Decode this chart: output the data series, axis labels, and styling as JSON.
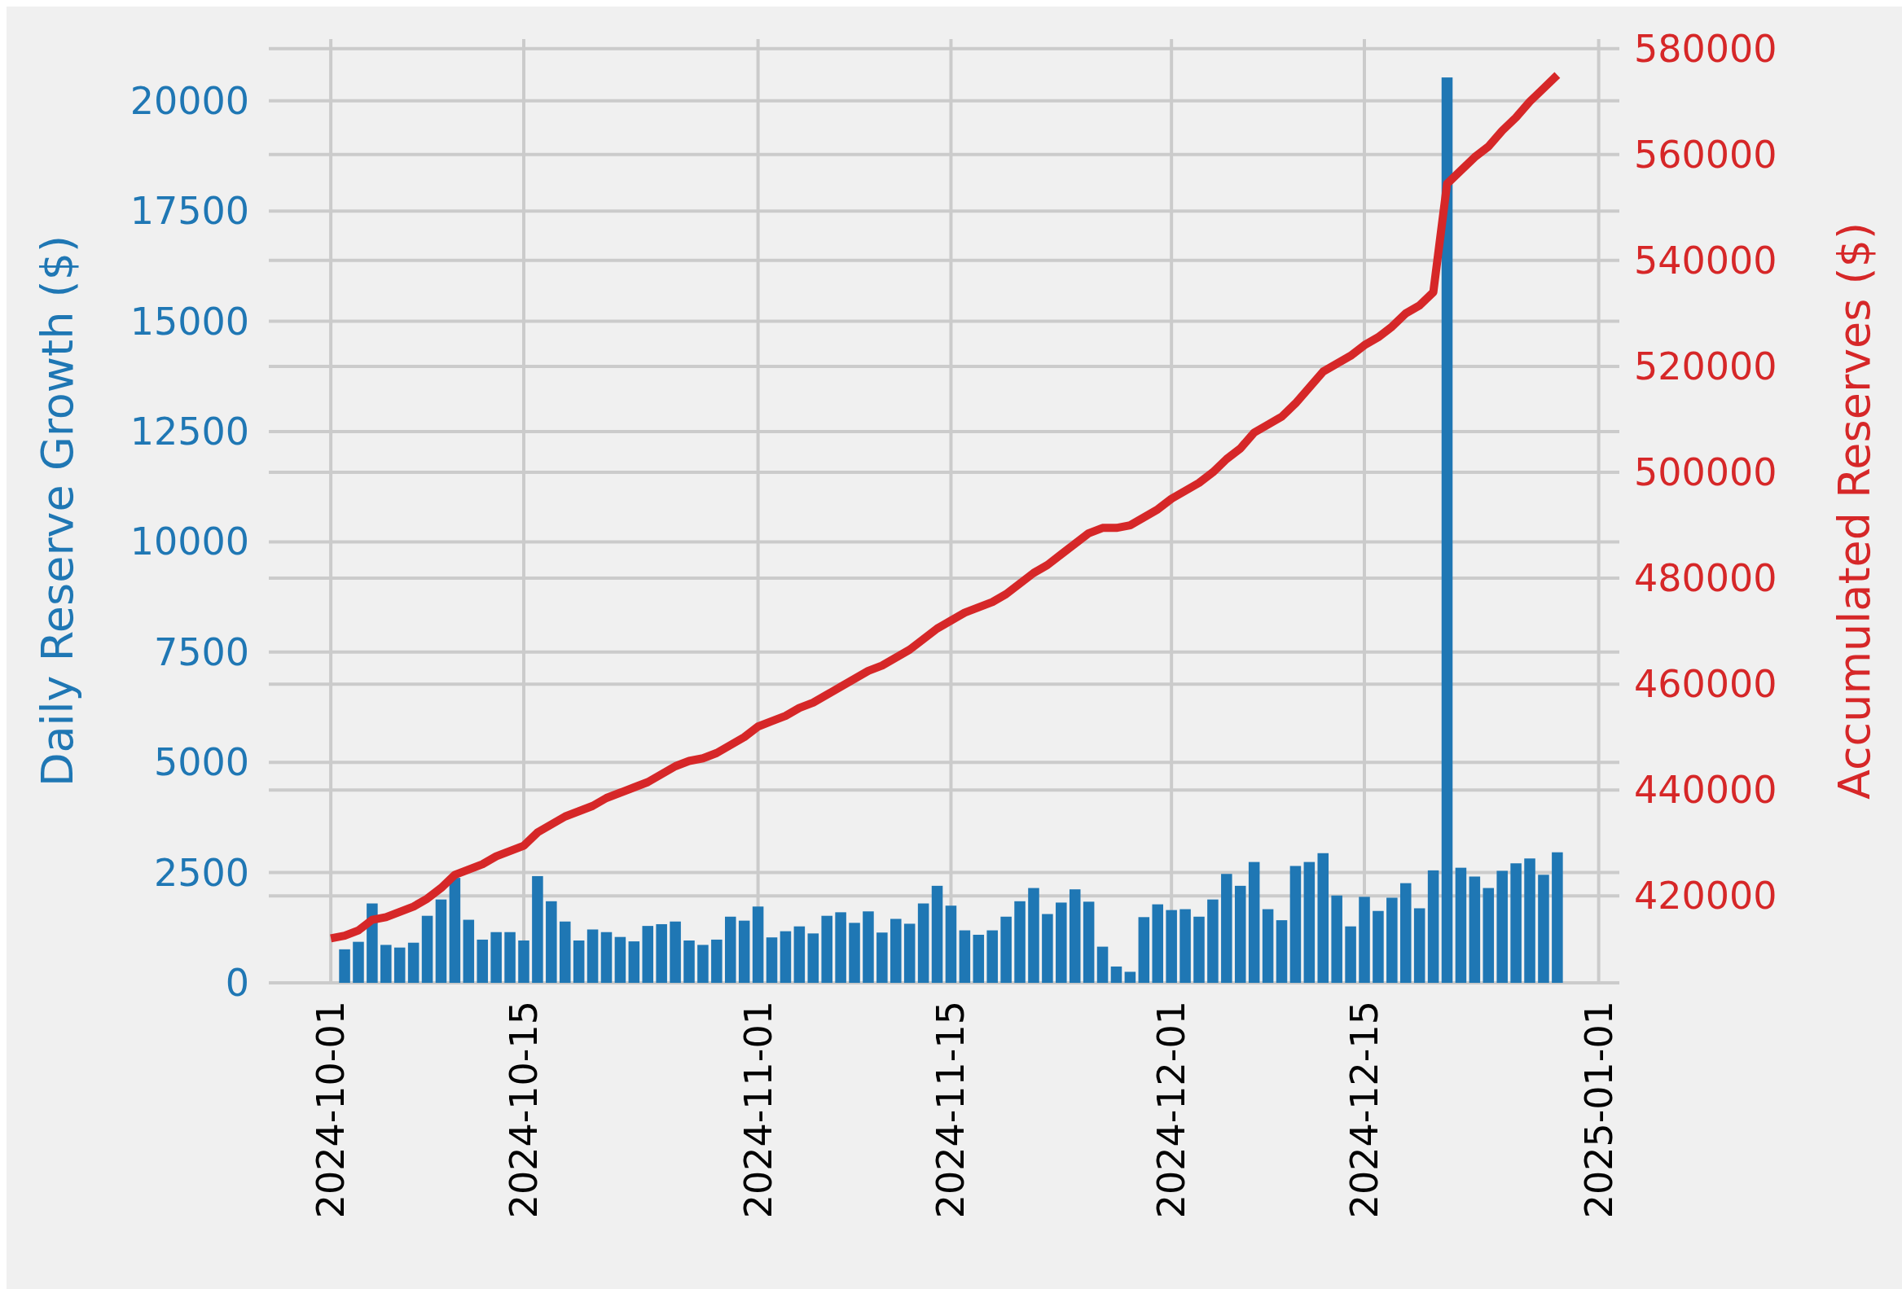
{
  "chart_data": {
    "type": "bar",
    "ylabel": "Daily Reserve Growth ($)",
    "y2label": "Accumulated Reserves ($)",
    "x": [
      "2024-10-01",
      "2024-10-02",
      "2024-10-03",
      "2024-10-04",
      "2024-10-05",
      "2024-10-06",
      "2024-10-07",
      "2024-10-08",
      "2024-10-09",
      "2024-10-10",
      "2024-10-11",
      "2024-10-12",
      "2024-10-13",
      "2024-10-14",
      "2024-10-15",
      "2024-10-16",
      "2024-10-17",
      "2024-10-18",
      "2024-10-19",
      "2024-10-20",
      "2024-10-21",
      "2024-10-22",
      "2024-10-23",
      "2024-10-24",
      "2024-10-25",
      "2024-10-26",
      "2024-10-27",
      "2024-10-28",
      "2024-10-29",
      "2024-10-30",
      "2024-10-31",
      "2024-11-01",
      "2024-11-02",
      "2024-11-03",
      "2024-11-04",
      "2024-11-05",
      "2024-11-06",
      "2024-11-07",
      "2024-11-08",
      "2024-11-09",
      "2024-11-10",
      "2024-11-11",
      "2024-11-12",
      "2024-11-13",
      "2024-11-14",
      "2024-11-15",
      "2024-11-16",
      "2024-11-17",
      "2024-11-18",
      "2024-11-19",
      "2024-11-20",
      "2024-11-21",
      "2024-11-22",
      "2024-11-23",
      "2024-11-24",
      "2024-11-25",
      "2024-11-26",
      "2024-11-27",
      "2024-11-28",
      "2024-11-29",
      "2024-11-30",
      "2024-12-01",
      "2024-12-02",
      "2024-12-03",
      "2024-12-04",
      "2024-12-05",
      "2024-12-06",
      "2024-12-07",
      "2024-12-08",
      "2024-12-09",
      "2024-12-10",
      "2024-12-11",
      "2024-12-12",
      "2024-12-13",
      "2024-12-14",
      "2024-12-15",
      "2024-12-16",
      "2024-12-17",
      "2024-12-18",
      "2024-12-19",
      "2024-12-20",
      "2024-12-21",
      "2024-12-22",
      "2024-12-23",
      "2024-12-24",
      "2024-12-25",
      "2024-12-26",
      "2024-12-27",
      "2024-12-28",
      "2024-12-29"
    ],
    "series": [
      {
        "axis": "y",
        "color": "#1f77b4",
        "values": [
          null,
          760,
          930,
          1800,
          860,
          800,
          910,
          1520,
          1890,
          2380,
          1430,
          980,
          1150,
          1150,
          960,
          2420,
          1850,
          1390,
          960,
          1210,
          1150,
          1040,
          940,
          1290,
          1330,
          1390,
          960,
          860,
          980,
          1500,
          1410,
          1730,
          1030,
          1170,
          1280,
          1120,
          1520,
          1600,
          1360,
          1620,
          1140,
          1450,
          1340,
          1800,
          2200,
          1750,
          1190,
          1090,
          1190,
          1500,
          1850,
          2150,
          1560,
          1820,
          2120,
          1840,
          820,
          370,
          250,
          1490,
          1780,
          1650,
          1670,
          1500,
          1890,
          2470,
          2200,
          2740,
          1670,
          1420,
          2650,
          2740,
          2940,
          1980,
          1280,
          1950,
          1630,
          1930,
          2260,
          1690,
          2550,
          20530,
          2610,
          2410,
          2150,
          2540,
          2710,
          2820,
          2450,
          2960
        ]
      },
      {
        "type": "line",
        "axis": "y2",
        "color": "#d62728",
        "values": [
          412000,
          412500,
          413500,
          415500,
          416000,
          417000,
          418000,
          419500,
          421500,
          424000,
          425000,
          426000,
          427500,
          428500,
          429500,
          432000,
          433500,
          435000,
          436000,
          437000,
          438500,
          439500,
          440500,
          441500,
          443000,
          444500,
          445500,
          446000,
          447000,
          448500,
          450000,
          452000,
          453000,
          454000,
          455500,
          456500,
          458000,
          459500,
          461000,
          462500,
          463500,
          465000,
          466500,
          468500,
          470500,
          472000,
          473500,
          474500,
          475500,
          477000,
          479000,
          481000,
          482500,
          484500,
          486500,
          488500,
          489500,
          489500,
          490000,
          491500,
          493000,
          495000,
          496500,
          498000,
          500000,
          502500,
          504500,
          507500,
          509000,
          510500,
          513000,
          516000,
          519000,
          520500,
          522000,
          524000,
          525500,
          527500,
          530000,
          531500,
          534000,
          554500,
          557000,
          559500,
          561500,
          564500,
          567000,
          570000,
          572500,
          575000
        ]
      }
    ],
    "xlim": [
      "2024-09-26T12:00",
      "2025-01-02T12:00"
    ],
    "xticks": [
      "2024-10-01",
      "2024-10-15",
      "2024-11-01",
      "2024-11-15",
      "2024-12-01",
      "2024-12-15",
      "2025-01-01"
    ],
    "ylim": [
      0,
      21400
    ],
    "yticks": [
      0,
      2500,
      5000,
      7500,
      10000,
      12500,
      15000,
      17500,
      20000
    ],
    "y2lim": [
      403600,
      581800
    ],
    "y2ticks": [
      420000,
      440000,
      460000,
      480000,
      500000,
      520000,
      540000,
      560000,
      580000
    ],
    "grid": true
  }
}
